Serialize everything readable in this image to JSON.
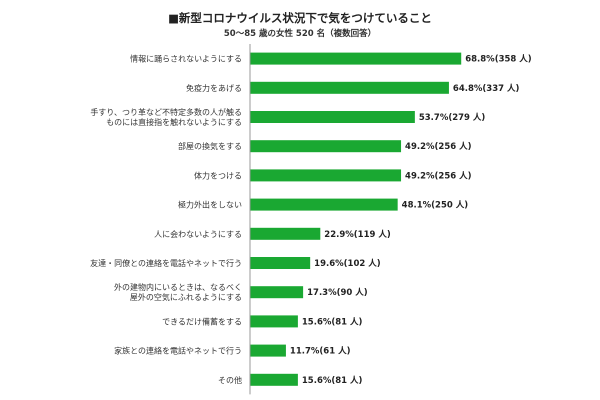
{
  "chart_data": {
    "type": "bar",
    "orientation": "horizontal",
    "title": "■新型コロナウイルス状況下で気をつけていること",
    "subtitle": "50～85 歳の女性 520 名（複数回答）",
    "bar_color": "#1aa832",
    "xlim": [
      0,
      100
    ],
    "grid": false,
    "categories": [
      [
        "情報に踊らされないようにする"
      ],
      [
        "免疫力をあげる"
      ],
      [
        "手すり、つり革など不特定多数の人が触る",
        "ものには直接指を触れないようにする"
      ],
      [
        "部屋の換気をする"
      ],
      [
        "体力をつける"
      ],
      [
        "極力外出をしない"
      ],
      [
        "人に会わないようにする"
      ],
      [
        "友達・同僚との連絡を電話やネットで行う"
      ],
      [
        "外の建物内にいるときは、なるべく",
        "屋外の空気にふれるようにする"
      ],
      [
        "できるだけ備蓄をする"
      ],
      [
        "家族との連絡を電話やネットで行う"
      ],
      [
        "その他"
      ]
    ],
    "values": [
      68.8,
      64.8,
      53.7,
      49.2,
      49.2,
      48.1,
      22.9,
      19.6,
      17.3,
      15.6,
      11.7,
      15.6
    ],
    "data_labels": [
      "68.8%(358 人)",
      "64.8%(337 人)",
      "53.7%(279 人)",
      "49.2%(256 人)",
      "49.2%(256 人)",
      "48.1%(250 人)",
      "22.9%(119 人)",
      "19.6%(102 人)",
      "17.3%(90 人)",
      "15.6%(81 人)",
      "11.7%(61 人)",
      "15.6%(81 人)"
    ]
  }
}
